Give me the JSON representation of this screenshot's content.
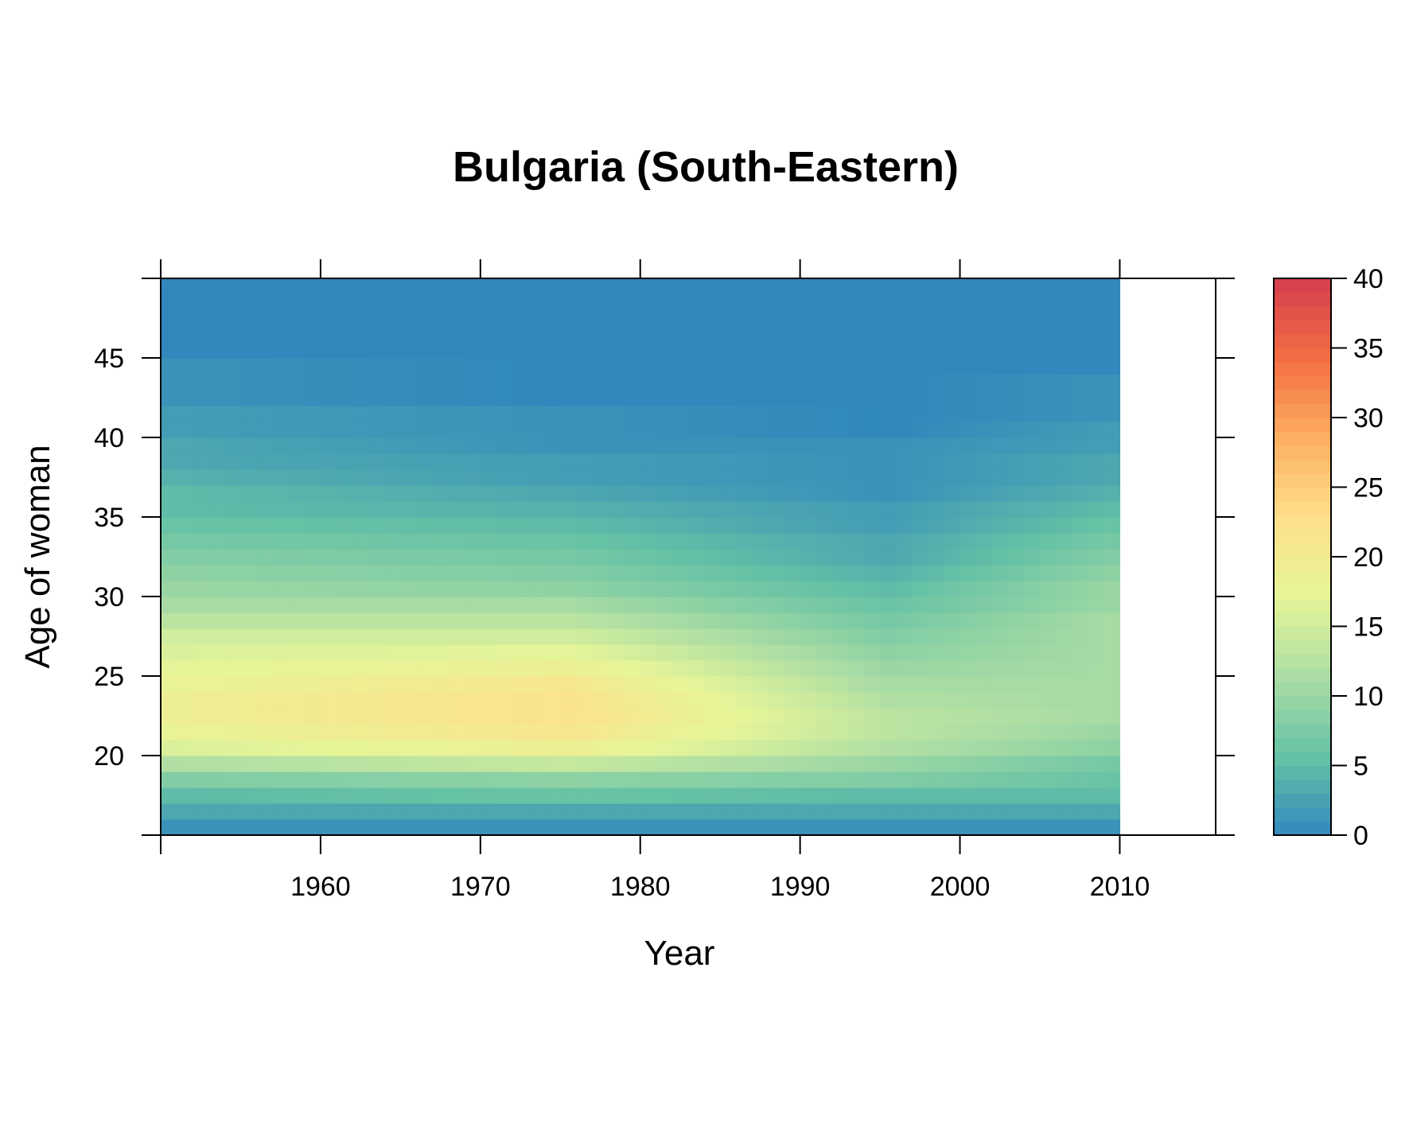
{
  "chart_data": {
    "type": "heatmap",
    "title": "Bulgaria (South-Eastern)",
    "xlabel": "Year",
    "ylabel": "Age of woman",
    "xlim": [
      1950,
      2016
    ],
    "ylim": [
      15,
      50
    ],
    "x_ticks": [
      "1960",
      "1970",
      "1980",
      "1990",
      "2000",
      "2010"
    ],
    "y_ticks": [
      "20",
      "25",
      "30",
      "35",
      "40",
      "45"
    ],
    "years": [
      1950,
      2009
    ],
    "ages": [
      15,
      49
    ],
    "colorbar": {
      "min": 0,
      "max": 40,
      "ticks": [
        "0",
        "5",
        "10",
        "15",
        "20",
        "25",
        "30",
        "35",
        "40"
      ],
      "palette": [
        "#3288bd",
        "#66c2a5",
        "#abdda4",
        "#e6f598",
        "#fee08b",
        "#fdae61",
        "#f46d43",
        "#d53e4f"
      ]
    },
    "age_profile_samples": [
      {
        "year": 1950,
        "values": [
          1,
          3,
          5,
          8,
          12,
          16,
          18,
          19,
          19,
          18,
          17,
          16,
          15,
          13,
          11,
          10,
          9,
          8,
          7,
          6,
          5,
          5,
          4,
          3,
          3,
          2,
          2,
          1,
          1,
          1,
          0,
          0,
          0,
          0,
          0
        ]
      },
      {
        "year": 1975,
        "values": [
          1,
          3,
          6,
          9,
          14,
          19,
          21,
          22,
          22,
          21,
          19,
          17,
          15,
          13,
          11,
          9,
          8,
          7,
          6,
          5,
          4,
          3,
          2,
          2,
          1,
          1,
          1,
          0,
          0,
          0,
          0,
          0,
          0,
          0,
          0
        ]
      },
      {
        "year": 1995,
        "values": [
          1,
          3,
          5,
          8,
          10,
          12,
          13,
          13,
          12,
          11,
          10,
          9,
          8,
          7,
          6,
          5,
          4,
          3,
          3,
          2,
          2,
          1,
          1,
          1,
          1,
          0,
          0,
          0,
          0,
          0,
          0,
          0,
          0,
          0,
          0
        ]
      },
      {
        "year": 2009,
        "values": [
          1,
          3,
          5,
          6,
          7,
          9,
          10,
          11,
          11,
          11,
          11,
          11,
          11,
          11,
          10,
          10,
          9,
          8,
          7,
          6,
          5,
          4,
          3,
          3,
          2,
          2,
          1,
          1,
          1,
          0,
          0,
          0,
          0,
          0,
          0
        ]
      }
    ],
    "grid": false,
    "legend": "right colorbar"
  }
}
